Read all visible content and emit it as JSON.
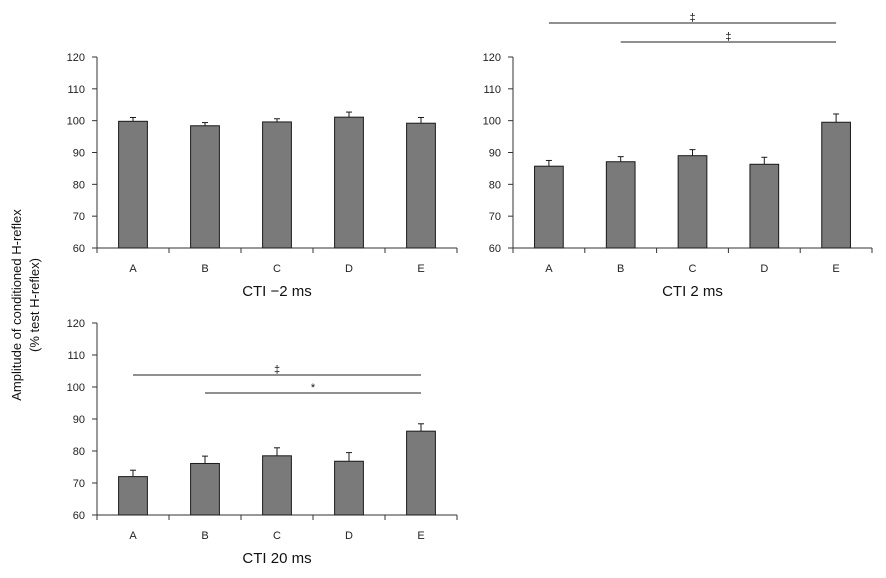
{
  "ylabel_line1": "Amplitude of conditioned H-reflex",
  "ylabel_line2": "(% test H-reflex)",
  "bar_color": "#7a7a7a",
  "chart_data": [
    {
      "type": "bar",
      "xlabel": "CTI −2 ms",
      "categories": [
        "A",
        "B",
        "C",
        "D",
        "E"
      ],
      "values": [
        99.8,
        98.4,
        99.6,
        101.1,
        99.2
      ],
      "errors": [
        1.2,
        1.0,
        1.0,
        1.6,
        1.8
      ],
      "ylim": [
        60,
        120
      ],
      "yticks": [
        60,
        70,
        80,
        90,
        100,
        110,
        120
      ],
      "significance": []
    },
    {
      "type": "bar",
      "xlabel": "CTI 2 ms",
      "categories": [
        "A",
        "B",
        "C",
        "D",
        "E"
      ],
      "values": [
        85.7,
        87.1,
        89.0,
        86.3,
        99.5
      ],
      "errors": [
        1.8,
        1.6,
        1.9,
        2.2,
        2.6
      ],
      "ylim": [
        60,
        120
      ],
      "yticks": [
        60,
        70,
        80,
        90,
        100,
        110,
        120
      ],
      "significance": [
        {
          "from": "A",
          "to": "E",
          "symbol": "‡"
        },
        {
          "from": "B",
          "to": "E",
          "symbol": "‡"
        }
      ]
    },
    {
      "type": "bar",
      "xlabel": "CTI 20 ms",
      "categories": [
        "A",
        "B",
        "C",
        "D",
        "E"
      ],
      "values": [
        72.0,
        76.1,
        78.5,
        76.8,
        86.2
      ],
      "errors": [
        2.0,
        2.3,
        2.5,
        2.7,
        2.3
      ],
      "ylim": [
        60,
        120
      ],
      "yticks": [
        60,
        70,
        80,
        90,
        100,
        110,
        120
      ],
      "significance": [
        {
          "from": "A",
          "to": "E",
          "symbol": "‡"
        },
        {
          "from": "B",
          "to": "E",
          "symbol": "*"
        }
      ]
    }
  ]
}
